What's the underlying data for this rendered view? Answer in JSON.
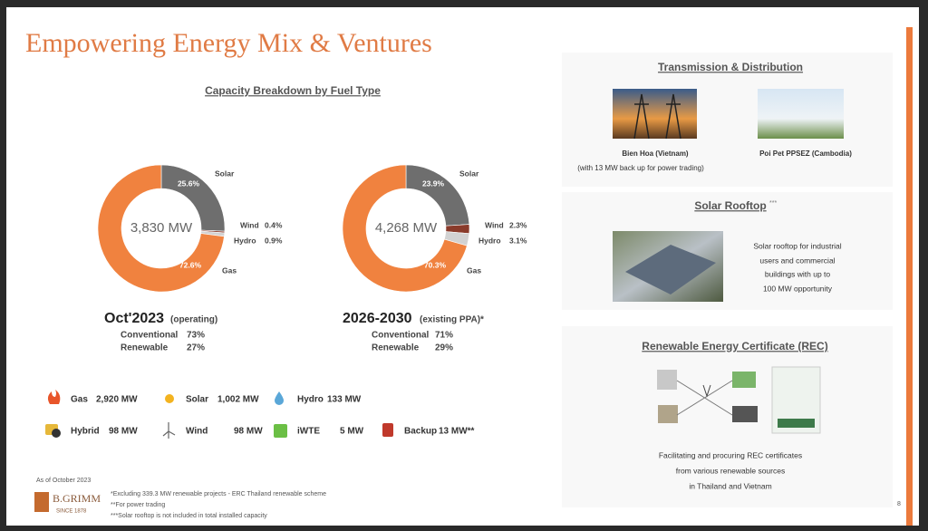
{
  "title": "Empowering Energy Mix & Ventures",
  "chart_heading": "Capacity Breakdown by Fuel Type",
  "chart_data": [
    {
      "type": "donut",
      "center_label": "3,830 MW",
      "categories": [
        "Solar",
        "Wind",
        "Hydro",
        "Gas"
      ],
      "values": [
        25.6,
        0.4,
        0.9,
        72.6
      ],
      "value_labels": [
        "25.6%",
        "0.4%",
        "0.9%",
        "72.6%"
      ],
      "colors": [
        "#6e6e6e",
        "#8a3b2b",
        "#d2d2d2",
        "#f0823f"
      ],
      "caption": "Oct'2023",
      "caption_note": "(operating)",
      "mix": [
        {
          "label": "Conventional",
          "value": "73%"
        },
        {
          "label": "Renewable",
          "value": "27%"
        }
      ]
    },
    {
      "type": "donut",
      "center_label": "4,268 MW",
      "categories": [
        "Solar",
        "Wind",
        "Hydro",
        "Gas"
      ],
      "values": [
        23.9,
        2.3,
        3.1,
        70.3
      ],
      "value_labels": [
        "23.9%",
        "2.3%",
        "3.1%",
        "70.3%"
      ],
      "colors": [
        "#6e6e6e",
        "#8a3b2b",
        "#d2d2d2",
        "#f0823f"
      ],
      "caption": "2026-2030",
      "caption_note": "(existing PPA)*",
      "mix": [
        {
          "label": "Conventional",
          "value": "71%"
        },
        {
          "label": "Renewable",
          "value": "29%"
        }
      ]
    }
  ],
  "fuel_legend": [
    {
      "label": "Gas",
      "amount": "2,920 MW"
    },
    {
      "label": "Solar",
      "amount": "1,002 MW"
    },
    {
      "label": "Hydro",
      "amount": "133 MW"
    },
    {
      "label": "Hybrid",
      "amount": "98 MW"
    },
    {
      "label": "Wind",
      "amount": "98 MW"
    },
    {
      "label": "iWTE",
      "amount": "5 MW"
    },
    {
      "label": "Backup",
      "amount": "13 MW**"
    }
  ],
  "as_of": "As of October 2023",
  "logo": {
    "name": "B.GRIMM",
    "since": "SINCE 1878"
  },
  "footnotes": [
    "*Excluding 339.3 MW renewable projects - ERC Thailand renewable scheme",
    "**For power trading",
    "***Solar rooftop is not included in total installed capacity"
  ],
  "transmission": {
    "heading": "Transmission & Distribution",
    "sites": [
      {
        "name": "Bien Hoa (Vietnam)",
        "note": "(with 13 MW back up for power trading)"
      },
      {
        "name": "Poi Pet PPSEZ (Cambodia)"
      }
    ]
  },
  "solar_rooftop": {
    "heading": "Solar Rooftop",
    "mark": "***",
    "lines": [
      "Solar rooftop for industrial",
      "users and commercial",
      "buildings with up to",
      "100 MW opportunity"
    ]
  },
  "rec": {
    "heading": "Renewable Energy Certificate (REC)",
    "lines": [
      "Facilitating and procuring REC certificates",
      "from various renewable sources",
      "in Thailand and Vietnam"
    ]
  },
  "page_number": "8"
}
